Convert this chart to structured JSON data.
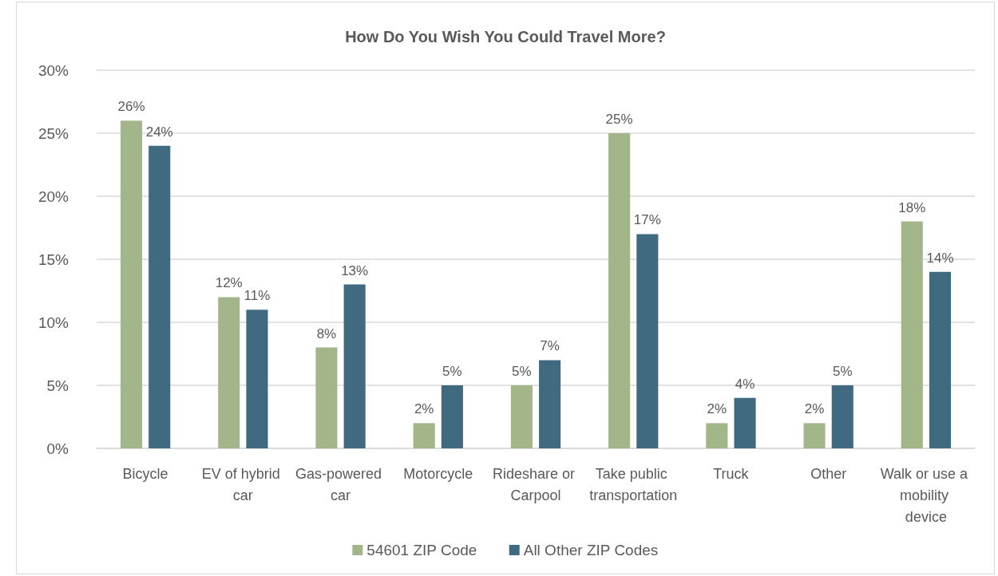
{
  "chart_data": {
    "type": "bar",
    "title": "How Do You Wish You Could Travel More?",
    "categories": [
      "Bicycle",
      "EV of hybrid car",
      "Gas-powered car",
      "Motorcycle",
      "Rideshare or Carpool",
      "Take public transportation",
      "Truck",
      "Other",
      "Walk or use a mobility device"
    ],
    "series": [
      {
        "name": "54601 ZIP Code",
        "color": "#a2b68a",
        "values": [
          26,
          12,
          8,
          2,
          5,
          25,
          2,
          2,
          18
        ],
        "value_labels": [
          "26%",
          "12%",
          "8%",
          "2%",
          "5%",
          "25%",
          "2%",
          "2%",
          "18%"
        ]
      },
      {
        "name": "All Other ZIP Codes",
        "color": "#3f6a7f",
        "values": [
          24,
          11,
          13,
          5,
          7,
          17,
          4,
          5,
          14
        ],
        "value_labels": [
          "24%",
          "11%",
          "13%",
          "5%",
          "7%",
          "17%",
          "4%",
          "5%",
          "14%"
        ]
      }
    ],
    "ylim": [
      0,
      30
    ],
    "yticks": [
      {
        "value": 0,
        "label": "0%"
      },
      {
        "value": 5,
        "label": "5%"
      },
      {
        "value": 10,
        "label": "10%"
      },
      {
        "value": 15,
        "label": "15%"
      },
      {
        "value": 20,
        "label": "20%"
      },
      {
        "value": 25,
        "label": "25%"
      },
      {
        "value": 30,
        "label": "30%"
      }
    ],
    "grid": "y",
    "legend": "bottom"
  }
}
